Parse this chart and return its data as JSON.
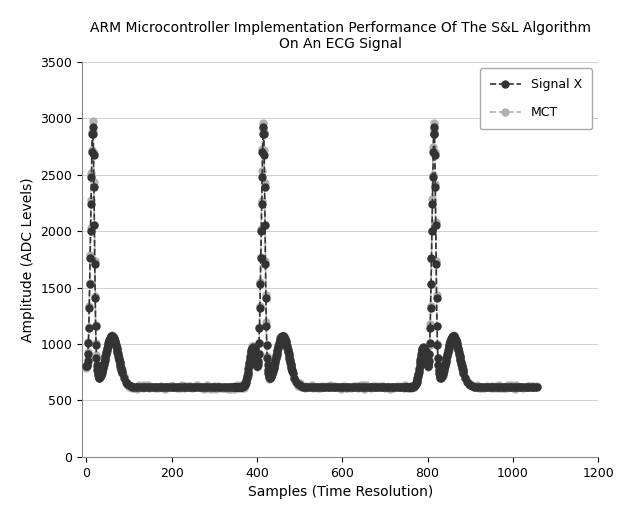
{
  "title": "ARM Microcontroller Implementation Performance Of The S&L Algorithm\nOn An ECG Signal",
  "xlabel": "Samples (Time Resolution)",
  "ylabel": "Amplitude (ADC Levels)",
  "xlim": [
    -10,
    1200
  ],
  "ylim": [
    0,
    3500
  ],
  "xticks": [
    0,
    200,
    400,
    600,
    800,
    1000,
    1200
  ],
  "yticks": [
    0,
    500,
    1000,
    1500,
    2000,
    2500,
    3000,
    3500
  ],
  "signal_color": "#333333",
  "mct_color": "#b0b0b0",
  "background": "#ffffff",
  "legend_labels": [
    "Signal X",
    "MCT"
  ],
  "marker_size": 5,
  "line_width": 1.2,
  "title_fontsize": 10,
  "axis_fontsize": 10,
  "tick_fontsize": 9
}
